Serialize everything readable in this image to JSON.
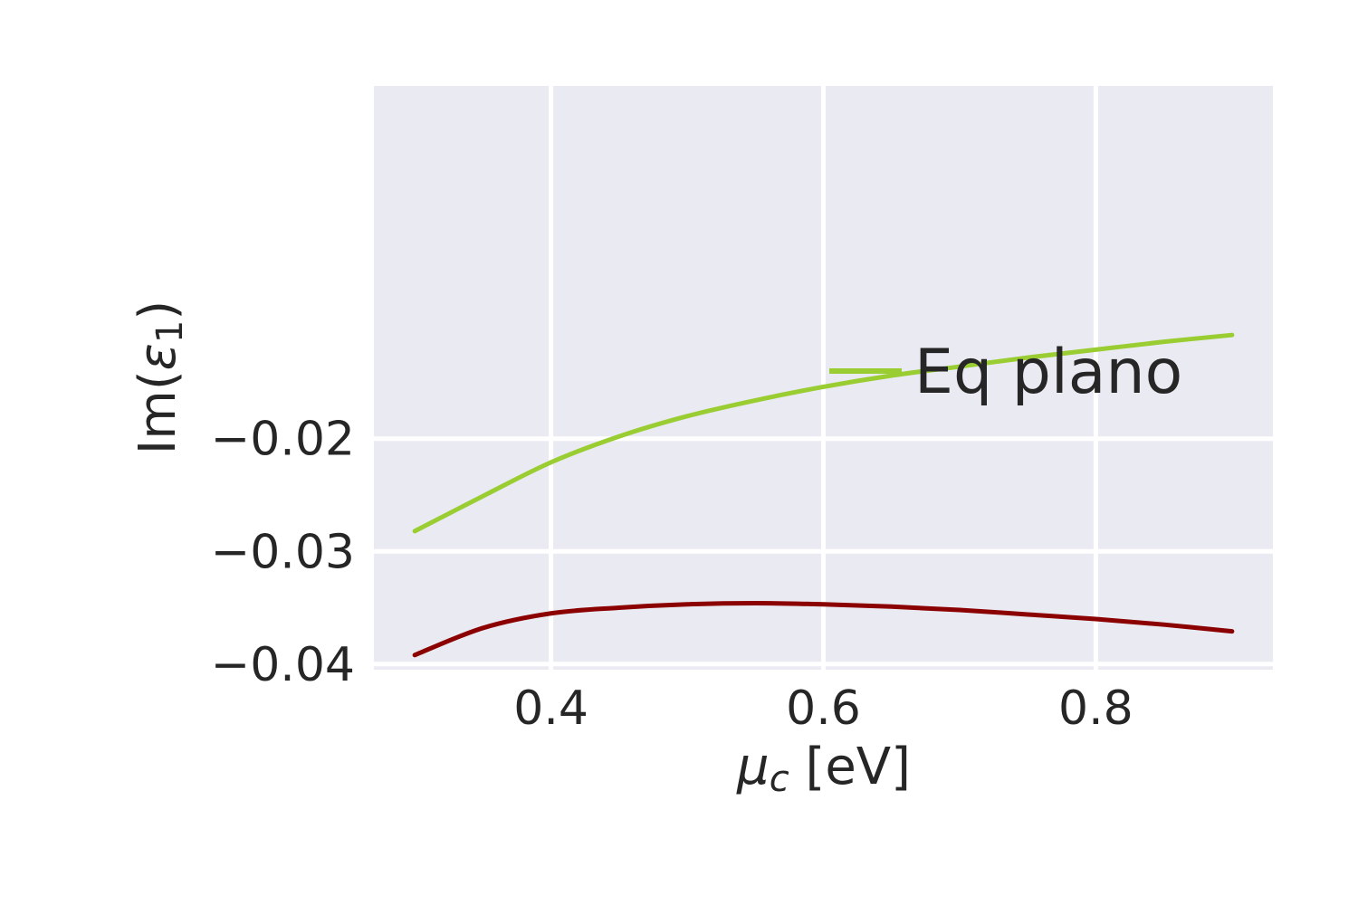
{
  "chart_data": {
    "type": "line",
    "title": "",
    "xlabel": {
      "symbol": "μ",
      "sub": "c",
      "unit": " [eV]"
    },
    "ylabel": {
      "prefix": "Im(",
      "symbol": "ε",
      "sub": "1",
      "suffix": ")"
    },
    "xlim": [
      0.27,
      0.93
    ],
    "ylim": [
      -0.0405,
      0.0113
    ],
    "x_ticks": [
      0.4,
      0.6,
      0.8
    ],
    "x_tick_labels": [
      "0.4",
      "0.6",
      "0.8"
    ],
    "y_ticks": [
      -0.04,
      -0.03,
      -0.02
    ],
    "y_tick_labels": [
      "−0.04",
      "−0.03",
      "−0.02"
    ],
    "grid": true,
    "legend_position": "center-right",
    "colors": {
      "background": "#EAEAF2",
      "grid": "#FFFFFF",
      "text": "#262626"
    },
    "series": [
      {
        "name": "Eq plano",
        "color": "#9ACD32",
        "x": [
          0.3,
          0.35,
          0.4,
          0.45,
          0.5,
          0.55,
          0.6,
          0.65,
          0.7,
          0.75,
          0.8,
          0.85,
          0.9
        ],
        "y": [
          -0.0282,
          -0.0251,
          -0.0221,
          -0.0198,
          -0.018,
          -0.0166,
          -0.0154,
          -0.0144,
          -0.0136,
          -0.0128,
          -0.0121,
          -0.0114,
          -0.0108
        ]
      },
      {
        "color": "#8B0000",
        "x": [
          0.3,
          0.35,
          0.4,
          0.45,
          0.5,
          0.55,
          0.6,
          0.65,
          0.7,
          0.75,
          0.8,
          0.85,
          0.9
        ],
        "y": [
          -0.0392,
          -0.0368,
          -0.0355,
          -0.035,
          -0.0347,
          -0.0346,
          -0.0347,
          -0.0349,
          -0.0352,
          -0.0356,
          -0.036,
          -0.0365,
          -0.0371
        ]
      }
    ]
  }
}
